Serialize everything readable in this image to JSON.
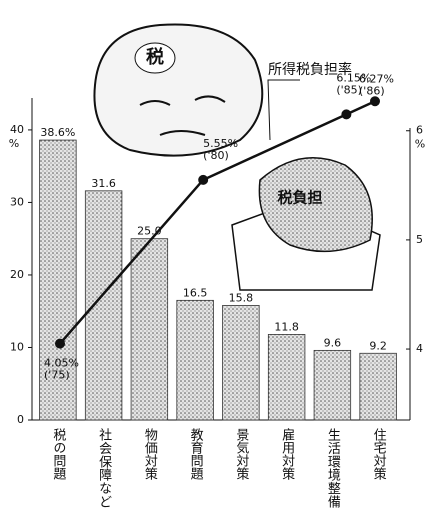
{
  "chart_data": [
    {
      "type": "bar",
      "categories": [
        "税の問題",
        "社会保障など",
        "物価対策",
        "教育問題",
        "景気対策",
        "雇用対策",
        "生活環境整備",
        "住宅対策"
      ],
      "values": [
        38.6,
        31.6,
        25.0,
        16.5,
        15.8,
        11.8,
        9.6,
        9.2
      ],
      "value_labels": [
        "38.6%",
        "31.6",
        "25.0",
        "16.5",
        "15.8",
        "11.8",
        "9.6",
        "9.2"
      ],
      "color": "#9a9a9a",
      "ylim": [
        0,
        44.4
      ],
      "yticks": [
        0,
        10,
        20,
        30,
        40
      ],
      "y_unit": "%"
    },
    {
      "type": "line",
      "x": [
        1975,
        1980,
        1985,
        1986
      ],
      "x_labels": [
        "('75)",
        "('80)",
        "('85)",
        "('86)"
      ],
      "xlim": [
        1975,
        1986
      ],
      "series": [
        {
          "name": "所得税負担率",
          "color": "#111111",
          "axis": "y2",
          "values": [
            4.05,
            5.55,
            6.15,
            6.27
          ],
          "value_labels": [
            "4.05%",
            "5.55%",
            "6.15%",
            "6.27%"
          ]
        }
      ],
      "y2lim": [
        3.35,
        6.3
      ],
      "y2ticks": [
        4,
        5,
        6
      ],
      "y2_unit": "%"
    }
  ],
  "illustrations": {
    "rock_text": "税",
    "house_text": "税負担"
  }
}
